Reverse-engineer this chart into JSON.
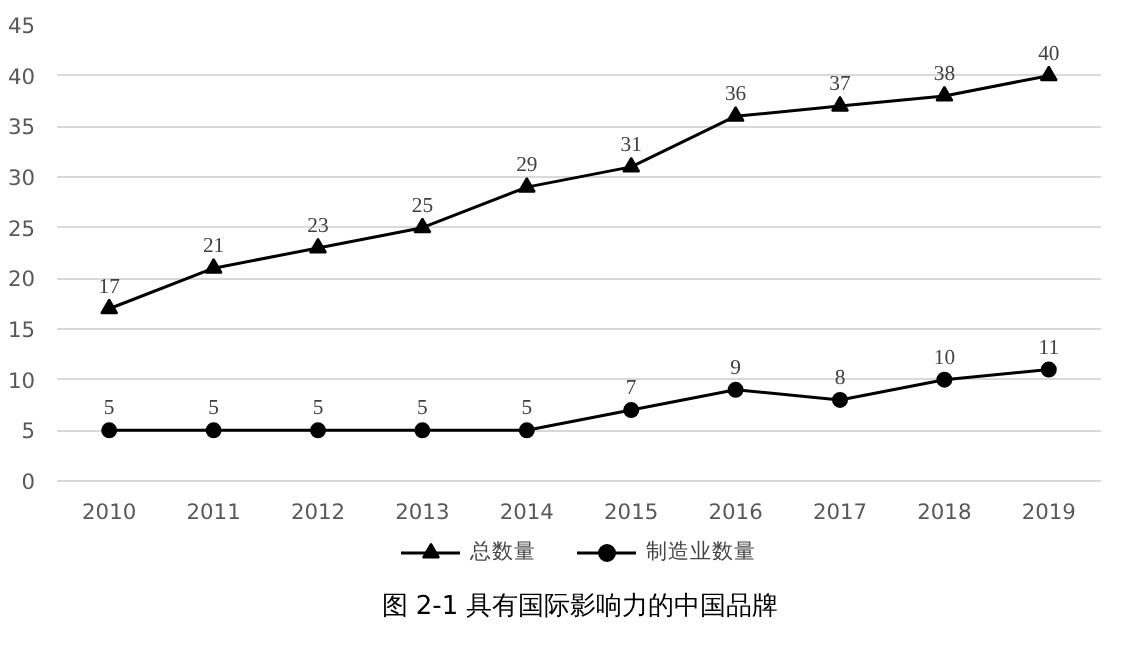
{
  "chart_data": {
    "type": "line",
    "title": "图 2-1 具有国际影响力的中国品牌",
    "categories": [
      "2010",
      "2011",
      "2012",
      "2013",
      "2014",
      "2015",
      "2016",
      "2017",
      "2018",
      "2019"
    ],
    "series": [
      {
        "name": "总数量",
        "color": "#000000",
        "marker": "triangle",
        "values": [
          17,
          21,
          23,
          25,
          29,
          31,
          36,
          37,
          38,
          40
        ]
      },
      {
        "name": "制造业数量",
        "color": "#000000",
        "marker": "circle",
        "values": [
          5,
          5,
          5,
          5,
          5,
          7,
          9,
          8,
          10,
          11
        ]
      }
    ],
    "ylim": [
      0,
      45
    ],
    "yticks": [
      0,
      5,
      10,
      15,
      20,
      25,
      30,
      35,
      40,
      45
    ],
    "grid": "y",
    "legend": "bottom",
    "data_labels": true,
    "line_style": "solid"
  }
}
